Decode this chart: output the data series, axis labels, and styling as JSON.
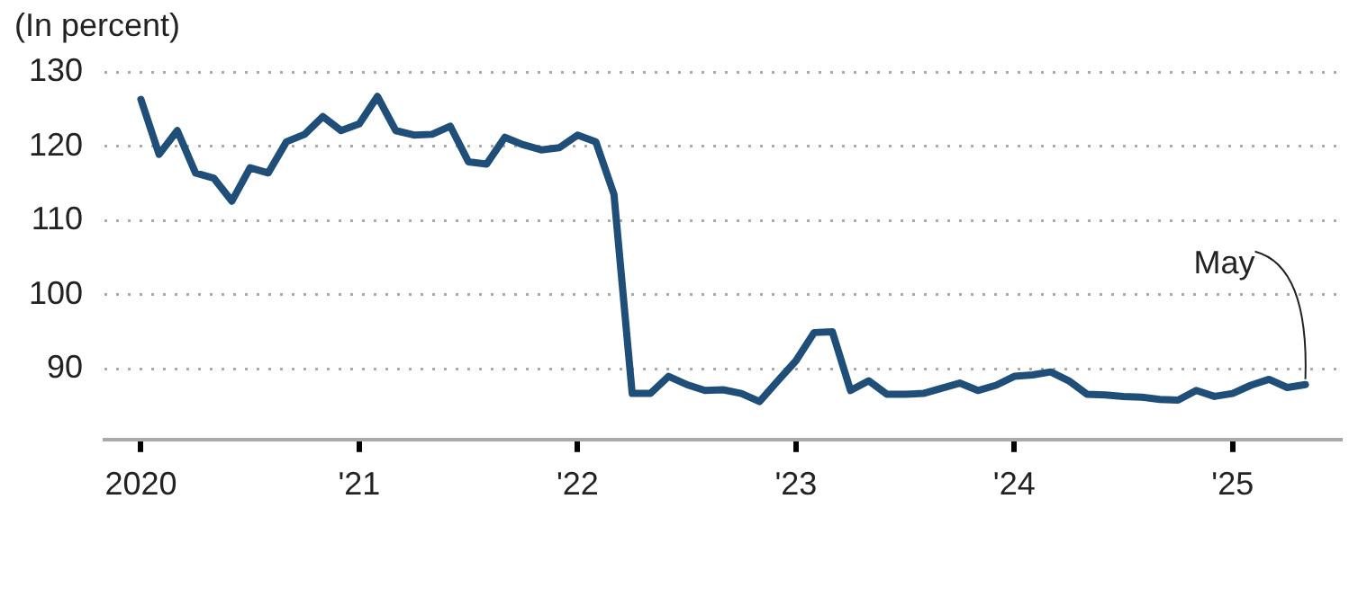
{
  "chart_data": {
    "type": "line",
    "ylabel": "(In percent)",
    "x": [
      "2020-01",
      "2020-02",
      "2020-03",
      "2020-04",
      "2020-05",
      "2020-06",
      "2020-07",
      "2020-08",
      "2020-09",
      "2020-10",
      "2020-11",
      "2020-12",
      "2021-01",
      "2021-02",
      "2021-03",
      "2021-04",
      "2021-05",
      "2021-06",
      "2021-07",
      "2021-08",
      "2021-09",
      "2021-10",
      "2021-11",
      "2021-12",
      "2022-01",
      "2022-02",
      "2022-03",
      "2022-04",
      "2022-05",
      "2022-06",
      "2022-07",
      "2022-08",
      "2022-09",
      "2022-10",
      "2022-11",
      "2022-12",
      "2023-01",
      "2023-02",
      "2023-03",
      "2023-04",
      "2023-05",
      "2023-06",
      "2023-07",
      "2023-08",
      "2023-09",
      "2023-10",
      "2023-11",
      "2023-12",
      "2024-01",
      "2024-02",
      "2024-03",
      "2024-04",
      "2024-05",
      "2024-06",
      "2024-07",
      "2024-08",
      "2024-09",
      "2024-10",
      "2024-11",
      "2024-12",
      "2025-01",
      "2025-02",
      "2025-03",
      "2025-04",
      "2025-05"
    ],
    "series": [
      {
        "color": "#1f4e79",
        "values": [
          126.3,
          118.9,
          122.1,
          116.4,
          115.7,
          112.6,
          117.1,
          116.4,
          120.6,
          121.6,
          124,
          122.1,
          123,
          126.7,
          122.1,
          121.5,
          121.6,
          122.7,
          117.9,
          117.6,
          121.2,
          120.2,
          119.5,
          119.8,
          121.5,
          120.6,
          113.5,
          86.7,
          86.7,
          89,
          87.9,
          87.1,
          87.2,
          86.7,
          85.6,
          88.4,
          91.1,
          94.9,
          95,
          87.1,
          88.4,
          86.6,
          86.6,
          86.7,
          87.4,
          88.1,
          87.1,
          87.8,
          89,
          89.2,
          89.6,
          88.4,
          86.6,
          86.5,
          86.3,
          86.2,
          85.9,
          85.8,
          87.1,
          86.3,
          86.7,
          87.8,
          88.6,
          87.5,
          87.9
        ]
      }
    ],
    "xlim": [
      "2019-11",
      "2025-07"
    ],
    "xticks": [
      {
        "value": "2020-01",
        "label": "2020"
      },
      {
        "value": "2021-01",
        "label": "'21"
      },
      {
        "value": "2022-01",
        "label": "'22"
      },
      {
        "value": "2023-01",
        "label": "'23"
      },
      {
        "value": "2024-01",
        "label": "'24"
      },
      {
        "value": "2025-01",
        "label": "'25"
      }
    ],
    "ylim": [
      80.5,
      130
    ],
    "yticks": [
      90,
      100,
      110,
      120,
      130
    ],
    "grid": "y",
    "legend": false,
    "marker": "none",
    "line_style": "solid",
    "annotations": [
      {
        "text": "May",
        "x": "2025-05",
        "y": 87.9
      }
    ]
  }
}
